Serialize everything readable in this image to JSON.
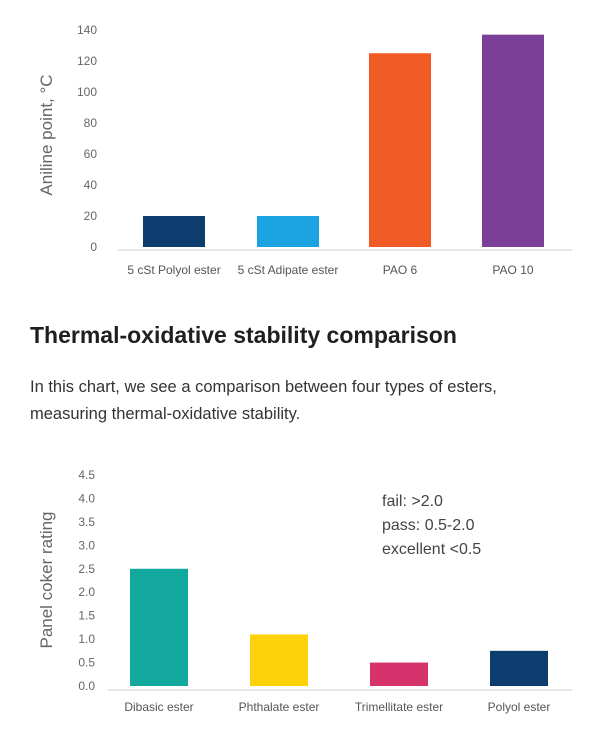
{
  "charts": [
    {
      "type": "bar",
      "ylabel": "Aniline point, °C",
      "ylim": [
        0,
        140
      ],
      "yticks": [
        0,
        20,
        40,
        60,
        80,
        100,
        120,
        140
      ],
      "categories": [
        "5 cSt Polyol ester",
        "5 cSt Adipate ester",
        "PAO 6",
        "PAO 10"
      ],
      "values": [
        20,
        20,
        125,
        137
      ],
      "colors": [
        "#0d3d6e",
        "#1aa3e0",
        "#f05a24",
        "#7b3f97"
      ]
    },
    {
      "type": "bar",
      "ylabel": "Panel coker rating",
      "ylim": [
        0,
        4.5
      ],
      "yticks": [
        "0.0",
        "0.5",
        "1.0",
        "1.5",
        "2.0",
        "2.5",
        "3.0",
        "3.5",
        "4.0",
        "4.5"
      ],
      "categories": [
        "Dibasic ester",
        "Phthalate ester",
        "Trimellitate ester",
        "Polyol ester"
      ],
      "values": [
        2.5,
        1.1,
        0.5,
        0.75
      ],
      "colors": [
        "#13a89e",
        "#fdd20a",
        "#d6336c",
        "#0d3d6e"
      ],
      "annotations": [
        "fail: >2.0",
        "pass: 0.5-2.0",
        "excellent <0.5"
      ]
    }
  ],
  "section": {
    "title": "Thermal-oxidative stability comparison",
    "description": "In this chart, we see a comparison between four types of esters, measuring thermal-oxidative stability."
  }
}
